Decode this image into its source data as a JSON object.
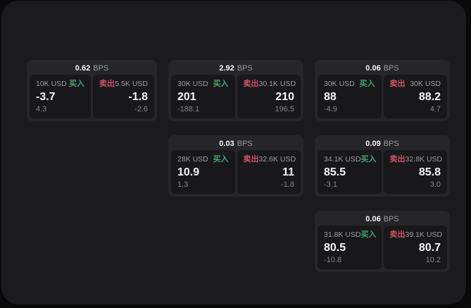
{
  "colors": {
    "background": "#0b0b0c",
    "panel": "#1b1b1d",
    "card": "#262628",
    "tile": "#18181a",
    "green": "#43a471",
    "red": "#cf5065",
    "text_primary": "#f5f5f6",
    "text_secondary": "#9d9da2"
  },
  "cards": [
    {
      "bps": "0.62",
      "unit": "BPS",
      "buy": {
        "amount": "10K USD",
        "side": "买入",
        "value": "-3.7",
        "sub": "4.3"
      },
      "sell": {
        "side": "卖出",
        "amount": "5.5K USD",
        "value": "-1.8",
        "sub": "-2.6"
      }
    },
    {
      "bps": "2.92",
      "unit": "BPS",
      "buy": {
        "amount": "30K USD",
        "side": "买入",
        "value": "201",
        "sub": "-188.1"
      },
      "sell": {
        "side": "卖出",
        "amount": "30.1K USD",
        "value": "210",
        "sub": "196.5"
      }
    },
    {
      "bps": "0.06",
      "unit": "BPS",
      "buy": {
        "amount": "30K USD",
        "side": "买入",
        "value": "88",
        "sub": "-4.9"
      },
      "sell": {
        "side": "卖出",
        "amount": "30K USD",
        "value": "88.2",
        "sub": "4.7"
      }
    },
    {
      "bps": "0.03",
      "unit": "BPS",
      "buy": {
        "amount": "28K USD",
        "side": "买入",
        "value": "10.9",
        "sub": "1.3"
      },
      "sell": {
        "side": "卖出",
        "amount": "32.6K USD",
        "value": "11",
        "sub": "-1.8"
      }
    },
    {
      "bps": "0.09",
      "unit": "BPS",
      "buy": {
        "amount": "34.1K USD",
        "side": "买入",
        "value": "85.5",
        "sub": "-3.1"
      },
      "sell": {
        "side": "卖出",
        "amount": "32.8K USD",
        "value": "85.8",
        "sub": "3.0"
      }
    },
    {
      "bps": "0.06",
      "unit": "BPS",
      "buy": {
        "amount": "31.8K USD",
        "side": "买入",
        "value": "80.5",
        "sub": "-10.8"
      },
      "sell": {
        "side": "卖出",
        "amount": "39.1K USD",
        "value": "80.7",
        "sub": "10.2"
      }
    }
  ]
}
